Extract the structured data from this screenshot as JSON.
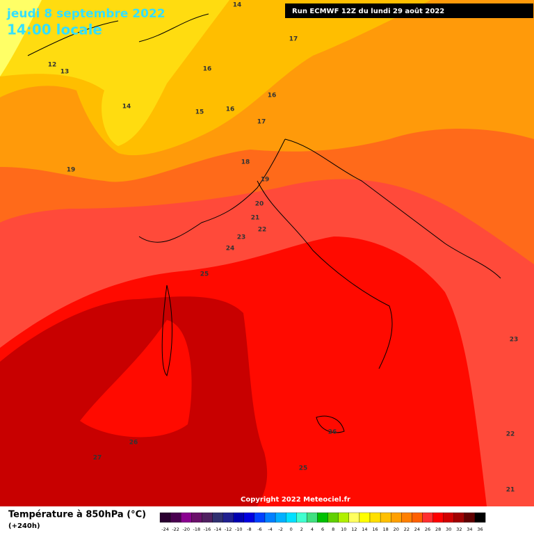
{
  "header": {
    "title": "jeudi 8 septembre 2022",
    "time": "14:00 locale",
    "run": "Run ECMWF 12Z du lundi 29 août 2022"
  },
  "map": {
    "contour_labels": [
      14,
      17,
      12,
      13,
      16,
      16,
      14,
      15,
      16,
      17,
      19,
      18,
      19,
      20,
      21,
      22,
      23,
      24,
      25,
      23,
      26,
      27,
      26,
      25,
      22,
      21
    ],
    "copyright": "Copyright 2022 Meteociel.fr"
  },
  "legend": {
    "title": "Température à 850hPa (°C)",
    "subtitle": "(+240h)",
    "ticks": [
      -24,
      -22,
      -20,
      -18,
      -16,
      -14,
      -12,
      -10,
      -8,
      -6,
      -4,
      -2,
      0,
      2,
      4,
      6,
      8,
      10,
      12,
      14,
      16,
      18,
      20,
      22,
      24,
      26,
      28,
      30,
      32,
      34,
      36
    ],
    "colors": [
      "#2a0030",
      "#4a0050",
      "#8a0090",
      "#6a106a",
      "#502060",
      "#303070",
      "#202090",
      "#0000b0",
      "#0000e0",
      "#0040ff",
      "#0080ff",
      "#00b0ff",
      "#00e0ff",
      "#40ffd0",
      "#40e080",
      "#00c000",
      "#60d000",
      "#b0f000",
      "#ffff60",
      "#ffff00",
      "#ffe000",
      "#ffc000",
      "#ffa000",
      "#ff8000",
      "#ff6000",
      "#ff3030",
      "#ff0000",
      "#d00000",
      "#a00000",
      "#600000",
      "#000000"
    ]
  }
}
